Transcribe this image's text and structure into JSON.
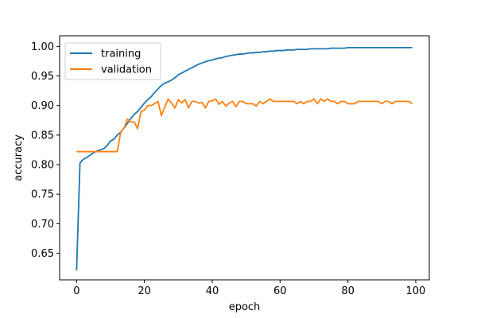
{
  "chart_data": {
    "type": "line",
    "title": "",
    "xlabel": "epoch",
    "ylabel": "accuracy",
    "xlim": [
      -5,
      104
    ],
    "ylim": [
      0.605,
      1.018
    ],
    "xticks": [
      0,
      20,
      40,
      60,
      80,
      100
    ],
    "yticks": [
      0.65,
      0.7,
      0.75,
      0.8,
      0.85,
      0.9,
      0.95,
      1.0
    ],
    "xtick_labels": [
      "0",
      "20",
      "40",
      "60",
      "80",
      "100"
    ],
    "ytick_labels": [
      "0.65",
      "0.70",
      "0.75",
      "0.80",
      "0.85",
      "0.90",
      "0.95",
      "1.00"
    ],
    "grid": false,
    "legend_position": "top-left",
    "series": [
      {
        "name": "training",
        "color": "#1f77b4",
        "x": [
          0,
          1,
          2,
          3,
          4,
          5,
          6,
          7,
          8,
          9,
          10,
          11,
          12,
          13,
          14,
          15,
          16,
          17,
          18,
          19,
          20,
          21,
          22,
          23,
          24,
          25,
          26,
          27,
          28,
          29,
          30,
          31,
          32,
          33,
          34,
          35,
          36,
          37,
          38,
          39,
          40,
          41,
          42,
          43,
          44,
          45,
          46,
          47,
          48,
          49,
          50,
          51,
          52,
          53,
          54,
          55,
          56,
          57,
          58,
          59,
          60,
          61,
          62,
          63,
          64,
          65,
          66,
          67,
          68,
          69,
          70,
          71,
          72,
          73,
          74,
          75,
          76,
          77,
          78,
          79,
          80,
          81,
          82,
          83,
          84,
          85,
          86,
          87,
          88,
          89,
          90,
          91,
          92,
          93,
          94,
          95,
          96,
          97,
          98,
          99
        ],
        "y": [
          0.621,
          0.803,
          0.809,
          0.812,
          0.816,
          0.82,
          0.823,
          0.825,
          0.827,
          0.832,
          0.84,
          0.843,
          0.85,
          0.855,
          0.862,
          0.87,
          0.878,
          0.885,
          0.89,
          0.897,
          0.904,
          0.91,
          0.915,
          0.922,
          0.928,
          0.934,
          0.938,
          0.94,
          0.943,
          0.947,
          0.952,
          0.955,
          0.958,
          0.961,
          0.964,
          0.967,
          0.97,
          0.972,
          0.974,
          0.976,
          0.977,
          0.979,
          0.98,
          0.981,
          0.983,
          0.984,
          0.985,
          0.986,
          0.987,
          0.987,
          0.988,
          0.989,
          0.989,
          0.99,
          0.99,
          0.991,
          0.991,
          0.992,
          0.992,
          0.993,
          0.993,
          0.993,
          0.994,
          0.994,
          0.994,
          0.995,
          0.995,
          0.995,
          0.995,
          0.996,
          0.996,
          0.996,
          0.996,
          0.996,
          0.996,
          0.997,
          0.997,
          0.997,
          0.997,
          0.997,
          0.998,
          0.998,
          0.998,
          0.998,
          0.998,
          0.998,
          0.998,
          0.998,
          0.998,
          0.998,
          0.998,
          0.998,
          0.998,
          0.998,
          0.998,
          0.998,
          0.998,
          0.998,
          0.998,
          0.998
        ]
      },
      {
        "name": "validation",
        "color": "#ff7f0e",
        "x": [
          0,
          1,
          2,
          3,
          4,
          5,
          6,
          7,
          8,
          9,
          10,
          11,
          12,
          13,
          14,
          15,
          16,
          17,
          18,
          19,
          20,
          21,
          22,
          23,
          24,
          25,
          26,
          27,
          28,
          29,
          30,
          31,
          32,
          33,
          34,
          35,
          36,
          37,
          38,
          39,
          40,
          41,
          42,
          43,
          44,
          45,
          46,
          47,
          48,
          49,
          50,
          51,
          52,
          53,
          54,
          55,
          56,
          57,
          58,
          59,
          60,
          61,
          62,
          63,
          64,
          65,
          66,
          67,
          68,
          69,
          70,
          71,
          72,
          73,
          74,
          75,
          76,
          77,
          78,
          79,
          80,
          81,
          82,
          83,
          84,
          85,
          86,
          87,
          88,
          89,
          90,
          91,
          92,
          93,
          94,
          95,
          96,
          97,
          98,
          99
        ],
        "y": [
          0.822,
          0.822,
          0.822,
          0.822,
          0.822,
          0.822,
          0.822,
          0.822,
          0.822,
          0.822,
          0.822,
          0.822,
          0.822,
          0.855,
          0.862,
          0.877,
          0.872,
          0.872,
          0.861,
          0.89,
          0.892,
          0.9,
          0.9,
          0.903,
          0.907,
          0.883,
          0.897,
          0.911,
          0.904,
          0.896,
          0.91,
          0.904,
          0.91,
          0.896,
          0.907,
          0.907,
          0.904,
          0.905,
          0.896,
          0.907,
          0.908,
          0.911,
          0.902,
          0.907,
          0.899,
          0.904,
          0.907,
          0.898,
          0.907,
          0.907,
          0.903,
          0.903,
          0.903,
          0.899,
          0.907,
          0.903,
          0.907,
          0.911,
          0.907,
          0.907,
          0.907,
          0.907,
          0.907,
          0.907,
          0.907,
          0.903,
          0.907,
          0.903,
          0.907,
          0.907,
          0.911,
          0.903,
          0.911,
          0.907,
          0.911,
          0.907,
          0.907,
          0.903,
          0.907,
          0.907,
          0.903,
          0.903,
          0.903,
          0.907,
          0.907,
          0.907,
          0.907,
          0.907,
          0.907,
          0.907,
          0.903,
          0.907,
          0.907,
          0.903,
          0.907,
          0.907,
          0.907,
          0.907,
          0.907,
          0.903
        ]
      }
    ]
  }
}
